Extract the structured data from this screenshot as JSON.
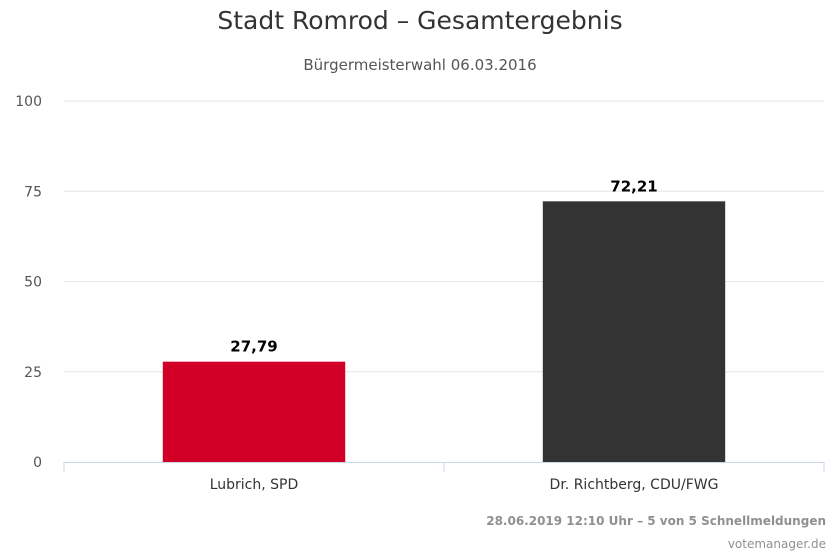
{
  "chart_data": {
    "type": "bar",
    "title": "Stadt Romrod – Gesamtergebnis",
    "subtitle": "Bürgermeisterwahl 06.03.2016",
    "categories": [
      "Lubrich, SPD",
      "Dr. Richtberg, CDU/FWG"
    ],
    "values": [
      27.79,
      72.21
    ],
    "value_labels": [
      "27,79",
      "72,21"
    ],
    "colors": [
      "#d20027",
      "#333333"
    ],
    "ylim": [
      0,
      100
    ],
    "yticks": [
      0,
      25,
      50,
      75,
      100
    ],
    "grid": true,
    "legend": "none"
  },
  "footer": {
    "status": "28.06.2019 12:10 Uhr – 5 von 5 Schnellmeldungen",
    "source": "votemanager.de"
  }
}
